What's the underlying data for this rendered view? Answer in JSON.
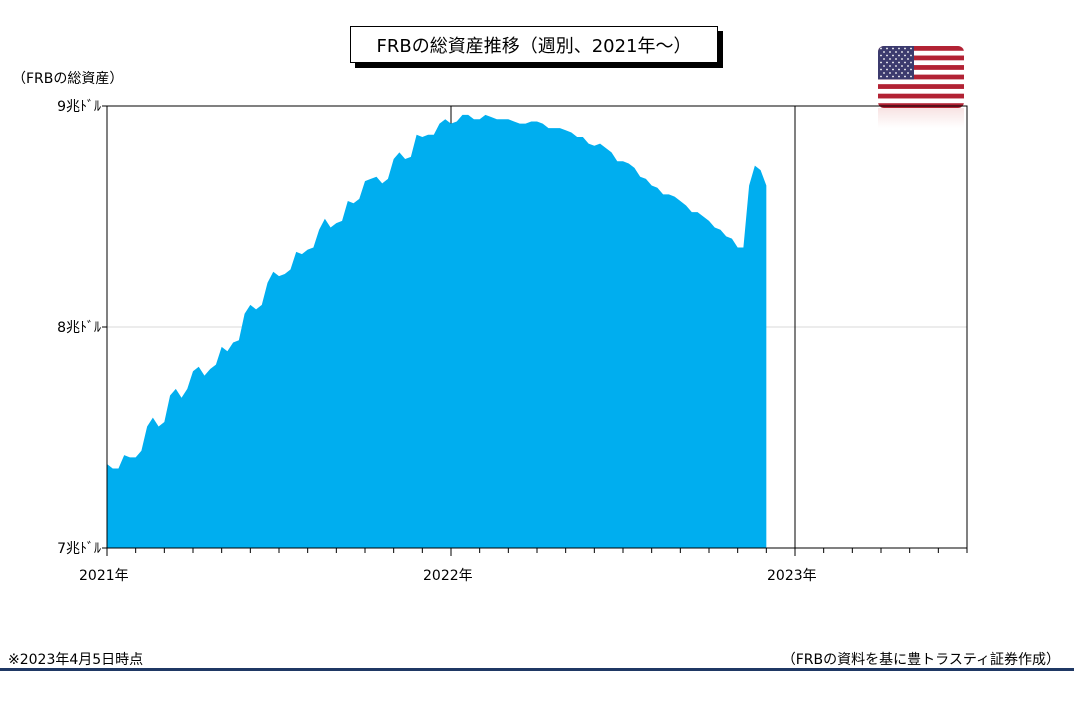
{
  "title": "FRBの総資産推移（週別、2021年～）",
  "y_unit_label": "（FRBの総資産）",
  "footer": {
    "note": "※2023年4月5日時点",
    "source": "（FRBの資料を基に豊トラスティ証券作成）"
  },
  "colors": {
    "area": "#00aeef",
    "axis": "#000000",
    "grid": "#d9d9d9",
    "footer_line": "#1f3864"
  },
  "flag_icon": "us-flag-icon",
  "chart_data": {
    "type": "area",
    "title": "FRBの総資産推移（週別、2021年～）",
    "ylabel": "（FRBの総資産）",
    "xlabel": "",
    "ylim": [
      7,
      9
    ],
    "y_ticks": [
      {
        "value": 9,
        "label": "9兆ﾄﾞﾙ"
      },
      {
        "value": 8,
        "label": "8兆ﾄﾞﾙ"
      },
      {
        "value": 7,
        "label": "7兆ﾄﾞﾙ"
      }
    ],
    "x_ticks": [
      {
        "week": 0,
        "label": "2021年"
      },
      {
        "week": 60,
        "label": "2022年"
      },
      {
        "week": 120,
        "label": "2023年"
      }
    ],
    "x_range_weeks": [
      0,
      150
    ],
    "grid": "horizontal at 8兆ﾄﾞﾙ; vertical at year boundaries",
    "series": [
      {
        "values": [
          7.38,
          7.36,
          7.36,
          7.42,
          7.41,
          7.41,
          7.44,
          7.55,
          7.59,
          7.55,
          7.57,
          7.69,
          7.72,
          7.68,
          7.72,
          7.8,
          7.82,
          7.78,
          7.81,
          7.83,
          7.91,
          7.89,
          7.93,
          7.94,
          8.06,
          8.1,
          8.08,
          8.1,
          8.2,
          8.25,
          8.23,
          8.24,
          8.26,
          8.34,
          8.33,
          8.35,
          8.36,
          8.44,
          8.49,
          8.45,
          8.47,
          8.48,
          8.57,
          8.56,
          8.58,
          8.66,
          8.67,
          8.68,
          8.65,
          8.67,
          8.76,
          8.79,
          8.76,
          8.77,
          8.87,
          8.86,
          8.87,
          8.87,
          8.92,
          8.94,
          8.92,
          8.93,
          8.96,
          8.96,
          8.94,
          8.94,
          8.96,
          8.95,
          8.94,
          8.94,
          8.94,
          8.93,
          8.92,
          8.92,
          8.93,
          8.93,
          8.92,
          8.9,
          8.9,
          8.9,
          8.89,
          8.88,
          8.86,
          8.86,
          8.83,
          8.82,
          8.83,
          8.81,
          8.79,
          8.75,
          8.75,
          8.74,
          8.72,
          8.68,
          8.67,
          8.64,
          8.63,
          8.6,
          8.6,
          8.59,
          8.57,
          8.55,
          8.52,
          8.52,
          8.5,
          8.48,
          8.45,
          8.44,
          8.41,
          8.4,
          8.36,
          8.36,
          8.64,
          8.73,
          8.71,
          8.64
        ]
      }
    ]
  }
}
